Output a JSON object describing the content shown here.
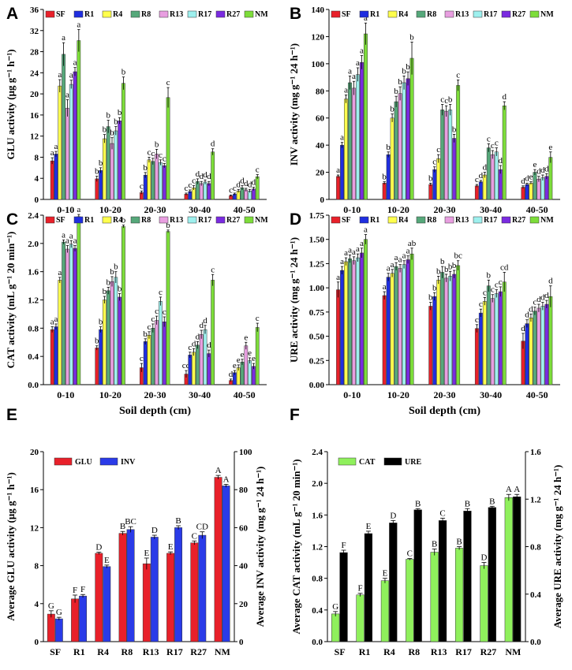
{
  "chart_data": [
    {
      "panel": "A",
      "type": "bar",
      "ylabel": "GLU activity (μg g⁻¹ h⁻¹)",
      "xlabel": "",
      "ylim": [
        0,
        36
      ],
      "yticks": [
        0,
        4,
        8,
        12,
        16,
        20,
        24,
        28,
        32,
        36
      ],
      "categories": [
        "0-10",
        "10-20",
        "20-30",
        "30-40",
        "40-50"
      ],
      "series": [
        {
          "name": "SF",
          "color": "#e8202a",
          "values": [
            7.3,
            3.9,
            1.3,
            1.0,
            0.7
          ],
          "errors": [
            0.6,
            0.5,
            0.3,
            0.2,
            0.15
          ],
          "letters": [
            "a",
            "b",
            "c",
            "c",
            "c"
          ]
        },
        {
          "name": "R1",
          "color": "#1f2ee0",
          "values": [
            8.6,
            5.5,
            4.6,
            1.5,
            1.0
          ],
          "errors": [
            0.5,
            0.5,
            0.5,
            0.3,
            0.2
          ],
          "letters": [
            "a",
            "b",
            "b",
            "c",
            "c"
          ]
        },
        {
          "name": "R4",
          "color": "#ffff4d",
          "values": [
            21.5,
            11.5,
            7.5,
            2.2,
            1.6
          ],
          "errors": [
            1.2,
            0.8,
            0.5,
            0.4,
            0.3
          ],
          "letters": [
            "a",
            "b",
            "c",
            "c",
            "d"
          ]
        },
        {
          "name": "R8",
          "color": "#56a87a",
          "values": [
            27.5,
            13.8,
            7.2,
            3.4,
            2.2
          ],
          "errors": [
            2.2,
            1.2,
            0.6,
            0.5,
            0.4
          ],
          "letters": [
            "a",
            "b",
            "c",
            "d",
            "d"
          ]
        },
        {
          "name": "R13",
          "color": "#e89ee0",
          "values": [
            17.3,
            10.6,
            8.6,
            3.0,
            1.8
          ],
          "errors": [
            1.6,
            1.1,
            0.9,
            0.4,
            0.3
          ],
          "letters": [
            "a",
            "b",
            "b",
            "d",
            "d"
          ]
        },
        {
          "name": "R17",
          "color": "#9ef0ee",
          "values": [
            21.8,
            13.0,
            7.0,
            3.3,
            1.6
          ],
          "errors": [
            0.8,
            0.8,
            0.5,
            0.4,
            0.3
          ],
          "letters": [
            "a",
            "b",
            "c",
            "d",
            "d"
          ]
        },
        {
          "name": "R27",
          "color": "#7a2be0",
          "values": [
            24.2,
            14.9,
            6.4,
            3.0,
            2.0
          ],
          "errors": [
            0.8,
            0.6,
            0.4,
            0.4,
            0.3
          ],
          "letters": [
            "a",
            "b",
            "c",
            "d",
            "d"
          ]
        },
        {
          "name": "NM",
          "color": "#7ddd3a",
          "values": [
            30.1,
            22.0,
            19.3,
            9.0,
            4.3
          ],
          "errors": [
            2.1,
            1.2,
            1.9,
            0.6,
            0.4
          ],
          "letters": [
            "a",
            "b",
            "c",
            "d",
            "c"
          ]
        }
      ]
    },
    {
      "panel": "B",
      "type": "bar",
      "ylabel": "INV activity (mg g⁻¹ 24 h⁻¹)",
      "xlabel": "",
      "ylim": [
        0,
        140
      ],
      "yticks": [
        0,
        20,
        40,
        60,
        80,
        100,
        120,
        140
      ],
      "categories": [
        "0-10",
        "10-20",
        "20-30",
        "30-40",
        "40-50"
      ],
      "series": [
        {
          "name": "SF",
          "color": "#e8202a",
          "values": [
            17,
            12,
            11,
            10,
            9
          ],
          "errors": [
            1,
            1,
            1,
            1,
            1
          ],
          "letters": [
            "a",
            "b",
            "b",
            "c",
            "d"
          ]
        },
        {
          "name": "R1",
          "color": "#1f2ee0",
          "values": [
            40,
            33,
            22,
            13,
            11
          ],
          "errors": [
            2,
            2,
            2,
            1,
            1
          ],
          "letters": [
            "a",
            "b",
            "c",
            "d",
            "d"
          ]
        },
        {
          "name": "R4",
          "color": "#ffff4d",
          "values": [
            74,
            60,
            30,
            18,
            12
          ],
          "errors": [
            3,
            3,
            3,
            2,
            1
          ],
          "letters": [
            "a",
            "b",
            "c",
            "d",
            "e"
          ]
        },
        {
          "name": "R8",
          "color": "#56a87a",
          "values": [
            86,
            72,
            66,
            38,
            20
          ],
          "errors": [
            5,
            4,
            4,
            3,
            2
          ],
          "letters": [
            "a",
            "b",
            "c",
            "c",
            "e"
          ]
        },
        {
          "name": "R13",
          "color": "#e89ee0",
          "values": [
            82,
            78,
            65,
            33,
            15
          ],
          "errors": [
            5,
            5,
            4,
            3,
            2
          ],
          "letters": [
            "a",
            "b",
            "c",
            "c",
            "d"
          ]
        },
        {
          "name": "R17",
          "color": "#9ef0ee",
          "values": [
            92,
            86,
            66,
            35,
            16
          ],
          "errors": [
            5,
            5,
            4,
            3,
            2
          ],
          "letters": [
            "a",
            "b",
            "b",
            "c",
            "d"
          ]
        },
        {
          "name": "R27",
          "color": "#7a2be0",
          "values": [
            101,
            89,
            45,
            22,
            17
          ],
          "errors": [
            5,
            5,
            3,
            3,
            2
          ],
          "letters": [
            "a",
            "b",
            "b",
            "d",
            "d"
          ]
        },
        {
          "name": "NM",
          "color": "#7ddd3a",
          "values": [
            122,
            104,
            84,
            69,
            31
          ],
          "errors": [
            8,
            12,
            4,
            3,
            4
          ],
          "letters": [
            "a",
            "b",
            "c",
            "d",
            "e"
          ]
        }
      ]
    },
    {
      "panel": "C",
      "type": "bar",
      "ylabel": "CAT activity (mL g⁻¹ 20 min⁻¹)",
      "xlabel": "Soil depth (cm)",
      "ylim": [
        0,
        2.4
      ],
      "yticks": [
        0.0,
        0.4,
        0.8,
        1.2,
        1.6,
        2.0,
        2.4
      ],
      "categories": [
        "0-10",
        "10-20",
        "20-30",
        "30-40",
        "40-50"
      ],
      "series": [
        {
          "name": "SF",
          "color": "#e8202a",
          "values": [
            0.78,
            0.52,
            0.24,
            0.15,
            0.06
          ],
          "errors": [
            0.04,
            0.03,
            0.06,
            0.05,
            0.02
          ],
          "letters": [
            "a",
            "b",
            "c",
            "cd",
            "d"
          ]
        },
        {
          "name": "R1",
          "color": "#1f2ee0",
          "values": [
            0.82,
            0.78,
            0.61,
            0.42,
            0.17
          ],
          "errors": [
            0.04,
            0.04,
            0.04,
            0.04,
            0.03
          ],
          "letters": [
            "a",
            "b",
            "b",
            "c",
            "e"
          ]
        },
        {
          "name": "R4",
          "color": "#ffff4d",
          "values": [
            1.48,
            1.2,
            0.7,
            0.46,
            0.24
          ],
          "errors": [
            0.04,
            0.05,
            0.05,
            0.05,
            0.04
          ],
          "letters": [
            "a",
            "b",
            "c",
            "d",
            "e"
          ]
        },
        {
          "name": "R8",
          "color": "#56a87a",
          "values": [
            2.02,
            1.33,
            0.8,
            0.56,
            0.32
          ],
          "errors": [
            0.03,
            0.05,
            0.06,
            0.05,
            0.04
          ],
          "letters": [
            "a",
            "b",
            "c",
            "d",
            "e"
          ]
        },
        {
          "name": "R13",
          "color": "#e89ee0",
          "values": [
            1.92,
            1.46,
            0.91,
            0.71,
            0.55
          ],
          "errors": [
            0.05,
            0.07,
            0.06,
            0.06,
            0.05
          ],
          "letters": [
            "a",
            "b",
            "c",
            "d",
            "e"
          ]
        },
        {
          "name": "R17",
          "color": "#9ef0ee",
          "values": [
            1.99,
            1.52,
            1.18,
            0.78,
            0.34
          ],
          "errors": [
            0.05,
            0.08,
            0.06,
            0.06,
            0.04
          ],
          "letters": [
            "a",
            "b",
            "c",
            "d",
            "e"
          ]
        },
        {
          "name": "R27",
          "color": "#7a2be0",
          "values": [
            1.93,
            1.24,
            0.89,
            0.44,
            0.26
          ],
          "errors": [
            0.04,
            0.05,
            0.07,
            0.05,
            0.04
          ],
          "letters": [
            "a",
            "b",
            "c",
            "d",
            "e"
          ]
        },
        {
          "name": "NM",
          "color": "#7ddd3a",
          "values": [
            2.38,
            2.24,
            2.17,
            1.48,
            0.81
          ],
          "errors": [
            0.03,
            0.02,
            0.02,
            0.08,
            0.06
          ],
          "letters": [
            "a",
            "b",
            "b",
            "c",
            "c"
          ]
        }
      ]
    },
    {
      "panel": "D",
      "type": "bar",
      "ylabel": "URE activity (mg g⁻¹ 24 h⁻¹)",
      "xlabel": "Soil depth (cm)",
      "ylim": [
        0,
        1.75
      ],
      "yticks": [
        0.0,
        0.25,
        0.5,
        0.75,
        1.0,
        1.25,
        1.5,
        1.75
      ],
      "categories": [
        "0-10",
        "10-20",
        "20-30",
        "30-40",
        "40-50"
      ],
      "series": [
        {
          "name": "SF",
          "color": "#e8202a",
          "values": [
            0.98,
            0.92,
            0.81,
            0.58,
            0.45
          ],
          "errors": [
            0.08,
            0.04,
            0.04,
            0.04,
            0.08
          ],
          "letters": [
            "a",
            "a",
            "b",
            "c",
            "d"
          ]
        },
        {
          "name": "R1",
          "color": "#1f2ee0",
          "values": [
            1.18,
            1.11,
            0.91,
            0.74,
            0.63
          ],
          "errors": [
            0.04,
            0.04,
            0.04,
            0.04,
            0.04
          ],
          "letters": [
            "a",
            "a",
            "b",
            "c",
            "d"
          ]
        },
        {
          "name": "R4",
          "color": "#ffff4d",
          "values": [
            1.27,
            1.15,
            1.08,
            0.86,
            0.69
          ],
          "errors": [
            0.04,
            0.04,
            0.04,
            0.04,
            0.04
          ],
          "letters": [
            "a",
            "a",
            "b",
            "c",
            "d"
          ]
        },
        {
          "name": "R8",
          "color": "#56a87a",
          "values": [
            1.3,
            1.22,
            1.16,
            1.02,
            0.76
          ],
          "errors": [
            0.04,
            0.04,
            0.06,
            0.06,
            0.04
          ],
          "letters": [
            "a",
            "a",
            "b",
            "b",
            "c"
          ]
        },
        {
          "name": "R13",
          "color": "#e89ee0",
          "values": [
            1.28,
            1.2,
            1.1,
            0.89,
            0.79
          ],
          "errors": [
            0.04,
            0.04,
            0.04,
            0.04,
            0.04
          ],
          "letters": [
            "a",
            "a",
            "b",
            "c",
            "d"
          ]
        },
        {
          "name": "R17",
          "color": "#9ef0ee",
          "values": [
            1.31,
            1.24,
            1.12,
            0.94,
            0.81
          ],
          "errors": [
            0.04,
            0.04,
            0.05,
            0.04,
            0.04
          ],
          "letters": [
            "a",
            "a",
            "b",
            "c",
            "d"
          ]
        },
        {
          "name": "R27",
          "color": "#7a2be0",
          "values": [
            1.36,
            1.29,
            1.14,
            0.96,
            0.83
          ],
          "errors": [
            0.05,
            0.04,
            0.04,
            0.05,
            0.04
          ],
          "letters": [
            "a",
            "a",
            "b",
            "c",
            "d"
          ]
        },
        {
          "name": "NM",
          "color": "#7ddd3a",
          "values": [
            1.5,
            1.35,
            1.23,
            1.06,
            0.91
          ],
          "errors": [
            0.05,
            0.06,
            0.05,
            0.1,
            0.11
          ],
          "letters": [
            "a",
            "ab",
            "bc",
            "cd",
            "d"
          ]
        }
      ]
    },
    {
      "panel": "E",
      "type": "bar",
      "ylabel": "Average GLU activity (μg g⁻¹ h⁻¹)",
      "y2label": "Average INV activity (mg g⁻¹ 24 h⁻¹)",
      "ylim": [
        0,
        20
      ],
      "yticks": [
        0,
        4,
        8,
        12,
        16,
        20
      ],
      "y2lim": [
        0,
        100
      ],
      "y2ticks": [
        0,
        20,
        40,
        60,
        80,
        100
      ],
      "categories": [
        "SF",
        "R1",
        "R4",
        "R8",
        "R13",
        "R17",
        "R27",
        "NM"
      ],
      "series": [
        {
          "name": "GLU",
          "axis": "left",
          "color": "#e8202a",
          "values": [
            2.9,
            4.5,
            9.3,
            11.4,
            8.2,
            9.3,
            10.4,
            17.3
          ],
          "errors": [
            0.35,
            0.4,
            0.12,
            0.2,
            0.6,
            0.15,
            0.2,
            0.2
          ],
          "letters": [
            "G",
            "F",
            "D",
            "B",
            "E",
            "E",
            "C",
            "A"
          ]
        },
        {
          "name": "INV",
          "axis": "right",
          "color": "#2a3be8",
          "values": [
            12,
            24,
            39.5,
            59,
            55,
            60,
            56,
            82
          ],
          "errors": [
            0.8,
            0.8,
            0.8,
            1.5,
            1,
            1,
            1.8,
            0.8
          ],
          "letters": [
            "G",
            "F",
            "E",
            "BC",
            "D",
            "B",
            "CD",
            "A"
          ]
        }
      ]
    },
    {
      "panel": "F",
      "type": "bar",
      "ylabel": "Average CAT activity (mL g⁻¹ 20 min⁻¹)",
      "y2label": "Average URE activity (mg g⁻¹ 24 h⁻¹)",
      "ylim": [
        0,
        2.4
      ],
      "yticks": [
        0.0,
        0.4,
        0.8,
        1.2,
        1.6,
        2.0,
        2.4
      ],
      "y2lim": [
        0,
        1.6
      ],
      "y2ticks": [
        0.0,
        0.4,
        0.8,
        1.2,
        1.6
      ],
      "categories": [
        "SF",
        "R1",
        "R4",
        "R8",
        "R13",
        "R17",
        "R27",
        "NM"
      ],
      "series": [
        {
          "name": "CAT",
          "axis": "left",
          "color": "#8ff05c",
          "values": [
            0.35,
            0.59,
            0.77,
            1.04,
            1.13,
            1.18,
            0.96,
            1.82
          ],
          "errors": [
            0.03,
            0.02,
            0.03,
            0.01,
            0.04,
            0.02,
            0.04,
            0.04
          ],
          "letters": [
            "G",
            "F",
            "E",
            "C",
            "B",
            "B",
            "D",
            "A"
          ]
        },
        {
          "name": "URE",
          "axis": "right",
          "color": "#000000",
          "values": [
            0.75,
            0.91,
            1.0,
            1.11,
            1.02,
            1.1,
            1.13,
            1.22
          ],
          "errors": [
            0.02,
            0.02,
            0.02,
            0.01,
            0.02,
            0.02,
            0.01,
            0.02
          ],
          "letters": [
            "F",
            "E",
            "D",
            "B",
            "C",
            "B",
            "B",
            "A"
          ]
        }
      ]
    }
  ]
}
